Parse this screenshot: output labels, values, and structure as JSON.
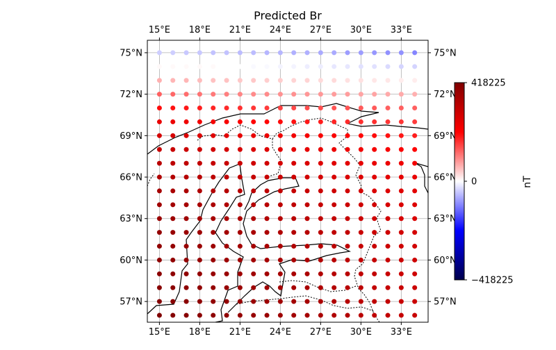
{
  "chart_data": {
    "type": "scatter",
    "title": "Predicted Br",
    "xlabel": "",
    "ylabel": "",
    "lon_range": [
      14.1,
      35.0
    ],
    "lat_range": [
      55.5,
      75.9
    ],
    "x_ticks": [
      15,
      18,
      21,
      24,
      27,
      30,
      33
    ],
    "x_tick_labels": [
      "15°E",
      "18°E",
      "21°E",
      "24°E",
      "27°E",
      "30°E",
      "33°E"
    ],
    "y_ticks": [
      57,
      60,
      63,
      66,
      69,
      72,
      75
    ],
    "y_tick_labels": [
      "57°N",
      "60°N",
      "63°N",
      "66°N",
      "69°N",
      "72°N",
      "75°N"
    ],
    "grid": true,
    "grid_lon": [
      15,
      16,
      17,
      18,
      19,
      20,
      21,
      22,
      23,
      24,
      25,
      26,
      27,
      28,
      29,
      30,
      31,
      32,
      33,
      34
    ],
    "grid_lat": [
      56,
      57,
      58,
      59,
      60,
      61,
      62,
      63,
      64,
      65,
      66,
      67,
      68,
      69,
      70,
      71,
      72,
      73,
      74,
      75
    ],
    "values_kT_by_lat": {
      "75": [
        -40,
        -40,
        -45,
        -45,
        -50,
        -50,
        -55,
        -55,
        -60,
        -60,
        -65,
        -65,
        -70,
        -70,
        -80,
        -80,
        -85,
        -90,
        -90,
        -100
      ],
      "74": [
        5,
        5,
        5,
        5,
        5,
        0,
        0,
        -5,
        -5,
        -10,
        -10,
        -15,
        -15,
        -20,
        -20,
        -25,
        -25,
        -30,
        -35,
        -35
      ],
      "73": [
        65,
        60,
        60,
        55,
        50,
        50,
        45,
        45,
        40,
        40,
        35,
        35,
        30,
        30,
        25,
        25,
        20,
        20,
        15,
        15
      ],
      "72": [
        130,
        125,
        120,
        115,
        110,
        105,
        100,
        95,
        95,
        90,
        90,
        85,
        85,
        80,
        80,
        75,
        75,
        70,
        70,
        65
      ],
      "71": [
        200,
        195,
        190,
        185,
        180,
        175,
        170,
        165,
        160,
        155,
        150,
        145,
        145,
        140,
        140,
        135,
        135,
        130,
        130,
        130
      ],
      "70": [
        245,
        240,
        235,
        230,
        225,
        220,
        215,
        210,
        205,
        200,
        195,
        190,
        185,
        180,
        175,
        170,
        170,
        165,
        165,
        160
      ],
      "69": [
        280,
        275,
        270,
        265,
        260,
        255,
        250,
        245,
        240,
        235,
        230,
        225,
        220,
        215,
        210,
        205,
        200,
        195,
        190,
        185
      ],
      "68": [
        300,
        300,
        295,
        290,
        285,
        280,
        275,
        270,
        265,
        260,
        255,
        250,
        245,
        240,
        235,
        230,
        225,
        220,
        215,
        210
      ],
      "67": [
        325,
        320,
        315,
        310,
        305,
        300,
        295,
        290,
        285,
        280,
        275,
        270,
        265,
        260,
        255,
        250,
        245,
        240,
        235,
        230
      ],
      "66": [
        340,
        335,
        330,
        325,
        320,
        315,
        310,
        305,
        300,
        295,
        290,
        285,
        280,
        275,
        270,
        265,
        260,
        255,
        250,
        245
      ],
      "65": [
        355,
        350,
        345,
        340,
        335,
        330,
        325,
        320,
        315,
        310,
        305,
        300,
        295,
        290,
        285,
        280,
        270,
        265,
        260,
        255
      ],
      "64": [
        365,
        360,
        355,
        350,
        345,
        340,
        335,
        330,
        325,
        320,
        315,
        310,
        305,
        300,
        295,
        290,
        285,
        275,
        270,
        265
      ],
      "63": [
        375,
        370,
        365,
        360,
        355,
        350,
        345,
        340,
        335,
        330,
        325,
        320,
        315,
        310,
        305,
        295,
        290,
        285,
        275,
        270
      ],
      "62": [
        385,
        380,
        375,
        370,
        365,
        360,
        355,
        350,
        345,
        340,
        335,
        330,
        320,
        315,
        310,
        300,
        295,
        290,
        285,
        280
      ],
      "61": [
        390,
        385,
        380,
        375,
        370,
        365,
        360,
        355,
        350,
        345,
        340,
        335,
        330,
        320,
        315,
        305,
        300,
        295,
        290,
        285
      ],
      "60": [
        395,
        390,
        385,
        380,
        375,
        370,
        365,
        360,
        355,
        350,
        345,
        340,
        335,
        325,
        320,
        310,
        305,
        300,
        295,
        290
      ],
      "59": [
        400,
        395,
        390,
        385,
        380,
        375,
        370,
        365,
        360,
        355,
        350,
        345,
        340,
        330,
        325,
        315,
        310,
        300,
        295,
        290
      ],
      "58": [
        405,
        400,
        395,
        390,
        385,
        380,
        375,
        370,
        365,
        360,
        355,
        350,
        340,
        335,
        325,
        320,
        310,
        305,
        300,
        295
      ],
      "57": [
        410,
        405,
        400,
        395,
        390,
        385,
        380,
        375,
        370,
        365,
        360,
        355,
        345,
        340,
        330,
        320,
        315,
        310,
        300,
        295
      ],
      "56": [
        418,
        410,
        405,
        400,
        395,
        390,
        385,
        380,
        375,
        370,
        360,
        355,
        350,
        340,
        335,
        325,
        315,
        310,
        305,
        300
      ]
    },
    "colorbar": {
      "label": "nT",
      "min": -418225,
      "max": 418225,
      "ticks": [
        418225,
        0,
        -418225
      ],
      "tick_labels": [
        "418225",
        "0",
        "−418225"
      ],
      "colormap": "seismic"
    },
    "map_features": [
      "coastlines",
      "country-borders"
    ]
  }
}
